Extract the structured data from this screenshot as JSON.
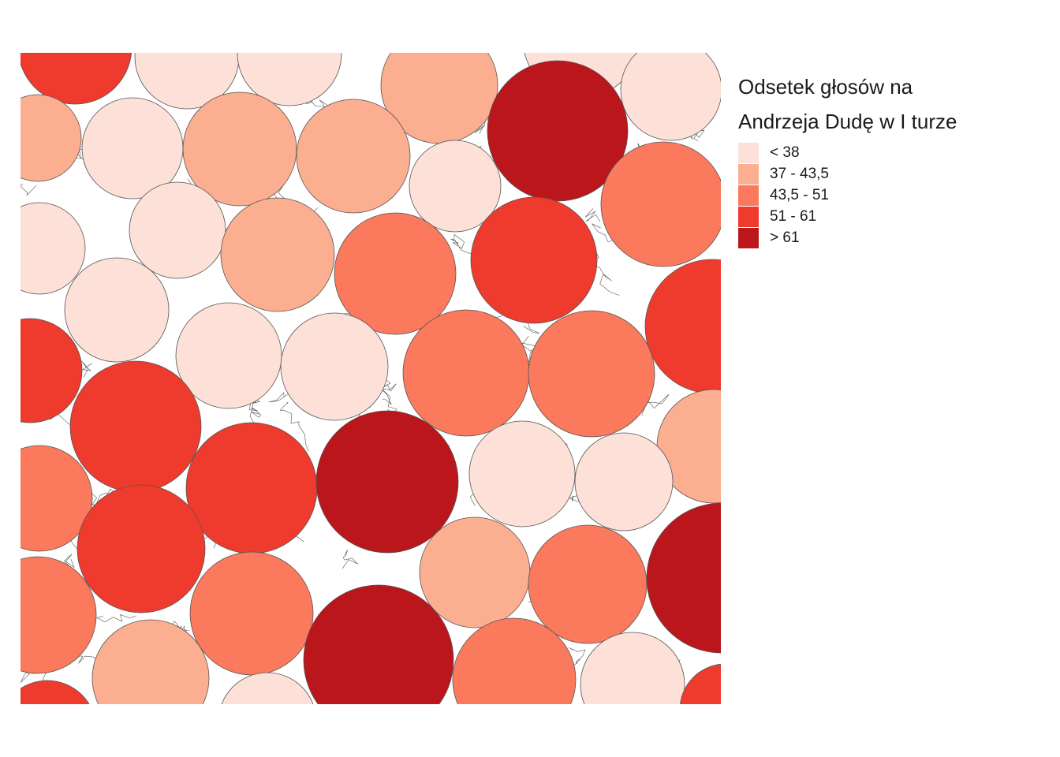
{
  "legend": {
    "title_line1": "Odsetek głosów na",
    "title_line2": "Andrzeja Dudę w I turze",
    "classes": [
      {
        "label": "< 38",
        "color": "#fde0d7"
      },
      {
        "label": "37 - 43,5",
        "color": "#fcae91"
      },
      {
        "label": "43,5 - 51",
        "color": "#fb7a5d"
      },
      {
        "label": "51 - 61",
        "color": "#ee3b2e"
      },
      {
        "label": "> 61",
        "color": "#bb161c"
      }
    ]
  },
  "map": {
    "circle_stroke": "#555555",
    "boundary_stroke": "#555555",
    "background": "#ffffff"
  }
}
